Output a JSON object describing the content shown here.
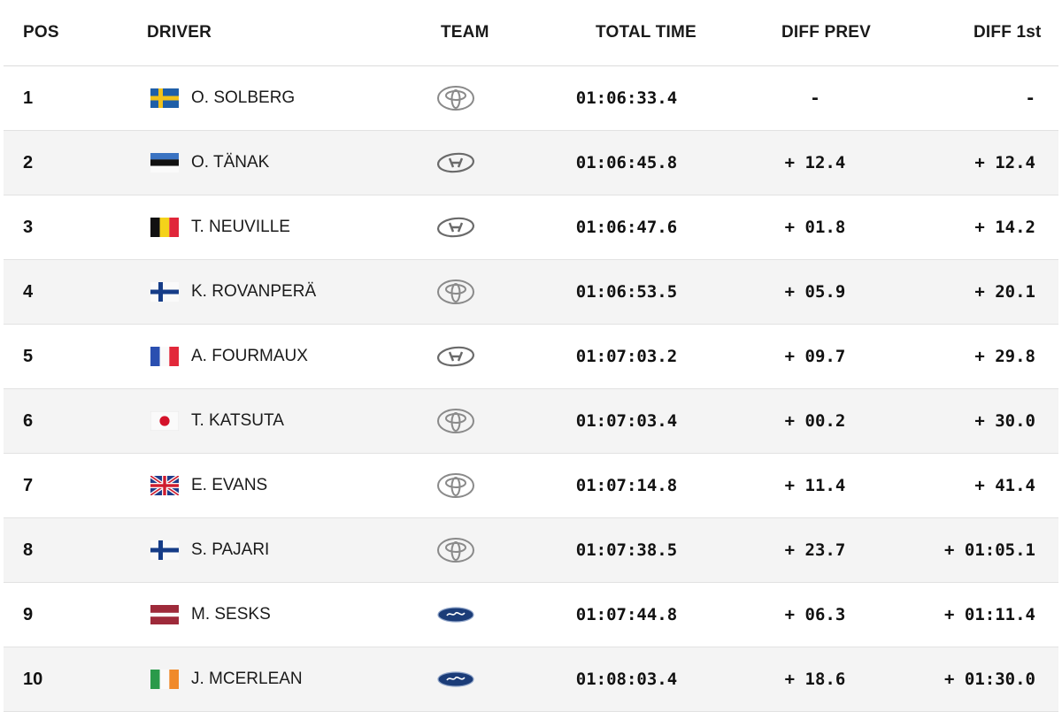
{
  "headers": {
    "pos": "POS",
    "driver": "DRIVER",
    "team": "TEAM",
    "total_time": "TOTAL TIME",
    "diff_prev": "DIFF PREV",
    "diff_first": "DIFF 1st"
  },
  "rows": [
    {
      "pos": "1",
      "driver": "O. SOLBERG",
      "flag": "sweden-flag-icon",
      "team": "toyota-logo-icon",
      "time": "01:06:33.4",
      "diff_prev": "-",
      "diff_first": "-"
    },
    {
      "pos": "2",
      "driver": "O. TÄNAK",
      "flag": "estonia-flag-icon",
      "team": "hyundai-logo-icon",
      "time": "01:06:45.8",
      "diff_prev": "+ 12.4",
      "diff_first": "+ 12.4"
    },
    {
      "pos": "3",
      "driver": "T. NEUVILLE",
      "flag": "belgium-flag-icon",
      "team": "hyundai-logo-icon",
      "time": "01:06:47.6",
      "diff_prev": "+ 01.8",
      "diff_first": "+ 14.2"
    },
    {
      "pos": "4",
      "driver": "K. ROVANPERÄ",
      "flag": "finland-flag-icon",
      "team": "toyota-logo-icon",
      "time": "01:06:53.5",
      "diff_prev": "+ 05.9",
      "diff_first": "+ 20.1"
    },
    {
      "pos": "5",
      "driver": "A. FOURMAUX",
      "flag": "france-flag-icon",
      "team": "hyundai-logo-icon",
      "time": "01:07:03.2",
      "diff_prev": "+ 09.7",
      "diff_first": "+ 29.8"
    },
    {
      "pos": "6",
      "driver": "T. KATSUTA",
      "flag": "japan-flag-icon",
      "team": "toyota-logo-icon",
      "time": "01:07:03.4",
      "diff_prev": "+ 00.2",
      "diff_first": "+ 30.0"
    },
    {
      "pos": "7",
      "driver": "E. EVANS",
      "flag": "uk-flag-icon",
      "team": "toyota-logo-icon",
      "time": "01:07:14.8",
      "diff_prev": "+ 11.4",
      "diff_first": "+ 41.4"
    },
    {
      "pos": "8",
      "driver": "S. PAJARI",
      "flag": "finland-flag-icon",
      "team": "toyota-logo-icon",
      "time": "01:07:38.5",
      "diff_prev": "+ 23.7",
      "diff_first": "+ 01:05.1"
    },
    {
      "pos": "9",
      "driver": "M. SESKS",
      "flag": "latvia-flag-icon",
      "team": "ford-logo-icon",
      "time": "01:07:44.8",
      "diff_prev": "+ 06.3",
      "diff_first": "+ 01:11.4"
    },
    {
      "pos": "10",
      "driver": "J. MCERLEAN",
      "flag": "ireland-flag-icon",
      "team": "ford-logo-icon",
      "time": "01:08:03.4",
      "diff_prev": "+ 18.6",
      "diff_first": "+ 01:30.0"
    }
  ],
  "colors": {
    "row_alt_background": "#f4f4f4",
    "border": "#e2e2e2",
    "ford_blue": "#1b3c78"
  }
}
